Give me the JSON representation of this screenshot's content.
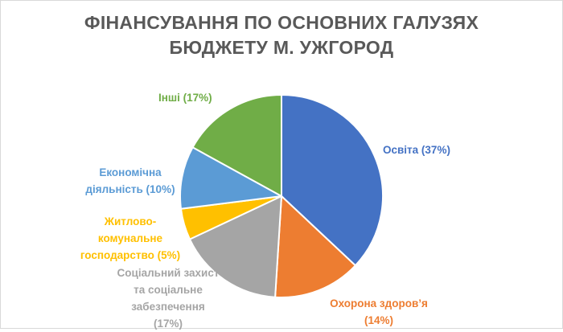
{
  "chart_data": {
    "type": "pie",
    "title_lines": [
      "ФІНАНСУВАННЯ ПО ОСНОВНИХ ГАЛУЗЯХ",
      "БЮДЖЕТУ М. УЖГОРОД"
    ],
    "slices": [
      {
        "label_lines": [
          "Освіта (37%)"
        ],
        "value": 37,
        "color": "#4472C4"
      },
      {
        "label_lines": [
          "Охорона здоров’я",
          "(14%)"
        ],
        "value": 14,
        "color": "#ED7D31"
      },
      {
        "label_lines": [
          "Соціальний захист",
          "та соціальне",
          "забезпечення",
          "(17%)"
        ],
        "value": 17,
        "color": "#A5A5A5"
      },
      {
        "label_lines": [
          "Житлово-",
          "комунальне",
          "господарство (5%)"
        ],
        "value": 5,
        "color": "#FFC000"
      },
      {
        "label_lines": [
          "Економічна",
          "діяльність (10%)"
        ],
        "value": 10,
        "color": "#5B9BD5"
      },
      {
        "label_lines": [
          "Інші (17%)"
        ],
        "value": 17,
        "color": "#70AD47"
      }
    ],
    "legend": "none"
  }
}
